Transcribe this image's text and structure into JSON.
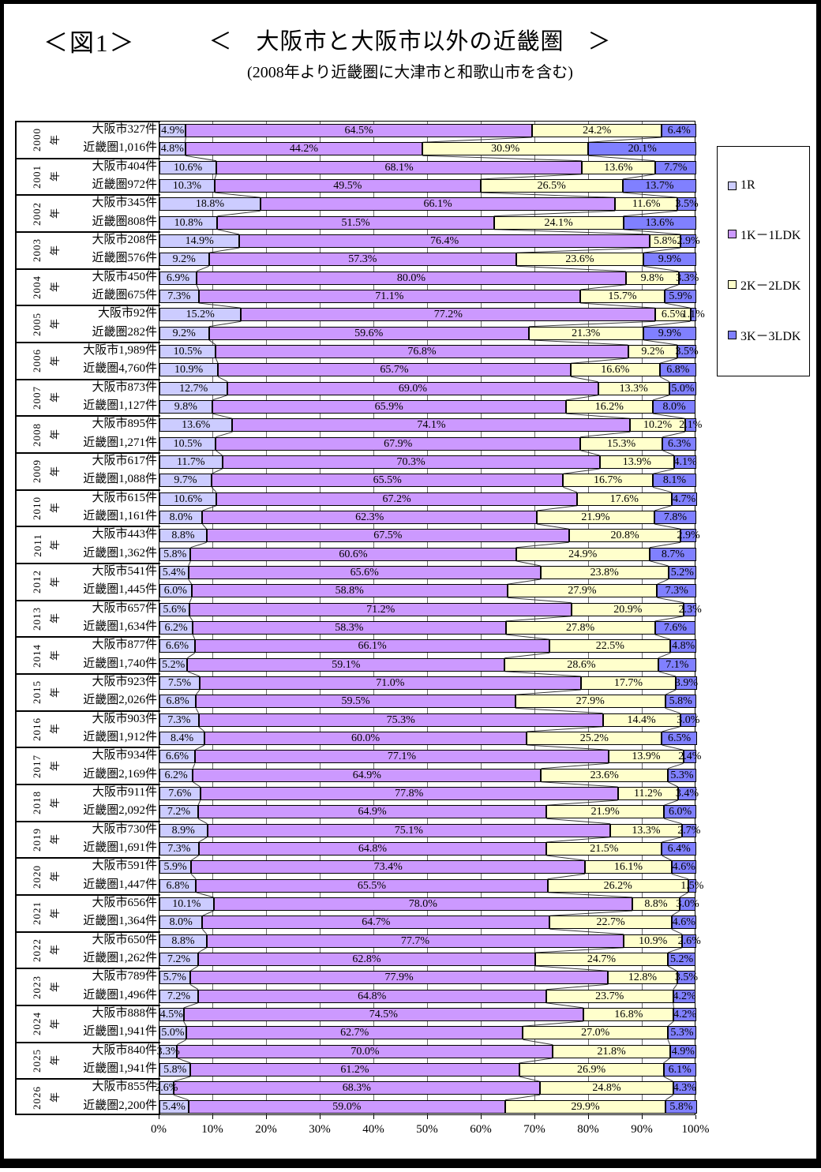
{
  "figure_label": "＜図1＞",
  "title": "＜　大阪市と大阪市以外の近畿圏　＞",
  "subtitle": "(2008年より近畿圏に大津市と和歌山市を含む)",
  "x_axis": {
    "ticks": [
      "0%",
      "10%",
      "20%",
      "30%",
      "40%",
      "50%",
      "60%",
      "70%",
      "80%",
      "90%",
      "100%"
    ]
  },
  "chart_data": {
    "type": "bar",
    "orientation": "horizontal",
    "stacked": "100-percent",
    "xlim": [
      0,
      100
    ],
    "grid": true,
    "legend_position": "right",
    "series": [
      "1R",
      "1K－1LDK",
      "2K－2LDK",
      "3K－3LDK"
    ],
    "colors": [
      "#CCCCFF",
      "#CC99FF",
      "#FFFFCC",
      "#8080FF"
    ],
    "groups": [
      {
        "year": "2000",
        "rows": [
          {
            "label": "大阪市327件",
            "values": [
              4.9,
              64.5,
              24.2,
              6.4
            ]
          },
          {
            "label": "近畿圏1,016件",
            "values": [
              4.8,
              44.2,
              30.9,
              20.1
            ]
          }
        ]
      },
      {
        "year": "2001",
        "rows": [
          {
            "label": "大阪市404件",
            "values": [
              10.6,
              68.1,
              13.6,
              7.7
            ]
          },
          {
            "label": "近畿圏972件",
            "values": [
              10.3,
              49.5,
              26.5,
              13.7
            ]
          }
        ]
      },
      {
        "year": "2002",
        "rows": [
          {
            "label": "大阪市345件",
            "values": [
              18.8,
              66.1,
              11.6,
              3.5
            ]
          },
          {
            "label": "近畿圏808件",
            "values": [
              10.8,
              51.5,
              24.1,
              13.6
            ]
          }
        ]
      },
      {
        "year": "2003",
        "rows": [
          {
            "label": "大阪市208件",
            "values": [
              14.9,
              76.4,
              5.8,
              2.9
            ]
          },
          {
            "label": "近畿圏576件",
            "values": [
              9.2,
              57.3,
              23.6,
              9.9
            ]
          }
        ]
      },
      {
        "year": "2004",
        "rows": [
          {
            "label": "大阪市450件",
            "values": [
              6.9,
              80.0,
              9.8,
              3.3
            ]
          },
          {
            "label": "近畿圏675件",
            "values": [
              7.3,
              71.1,
              15.7,
              5.9
            ]
          }
        ]
      },
      {
        "year": "2005",
        "rows": [
          {
            "label": "大阪市92件",
            "values": [
              15.2,
              77.2,
              6.5,
              1.1
            ]
          },
          {
            "label": "近畿圏282件",
            "values": [
              9.2,
              59.6,
              21.3,
              9.9
            ]
          }
        ]
      },
      {
        "year": "2006",
        "rows": [
          {
            "label": "大阪市1,989件",
            "values": [
              10.5,
              76.8,
              9.2,
              3.5
            ]
          },
          {
            "label": "近畿圏4,760件",
            "values": [
              10.9,
              65.7,
              16.6,
              6.8
            ]
          }
        ]
      },
      {
        "year": "2007",
        "rows": [
          {
            "label": "大阪市873件",
            "values": [
              12.7,
              69.0,
              13.3,
              5.0
            ]
          },
          {
            "label": "近畿圏1,127件",
            "values": [
              9.8,
              65.9,
              16.2,
              8.0
            ]
          }
        ]
      },
      {
        "year": "2008",
        "rows": [
          {
            "label": "大阪市895件",
            "values": [
              13.6,
              74.1,
              10.2,
              2.1
            ]
          },
          {
            "label": "近畿圏1,271件",
            "values": [
              10.5,
              67.9,
              15.3,
              6.3
            ]
          }
        ]
      },
      {
        "year": "2009",
        "rows": [
          {
            "label": "大阪市617件",
            "values": [
              11.7,
              70.3,
              13.9,
              4.1
            ]
          },
          {
            "label": "近畿圏1,088件",
            "values": [
              9.7,
              65.5,
              16.7,
              8.1
            ]
          }
        ]
      },
      {
        "year": "2010",
        "rows": [
          {
            "label": "大阪市615件",
            "values": [
              10.6,
              67.2,
              17.6,
              4.7
            ]
          },
          {
            "label": "近畿圏1,161件",
            "values": [
              8.0,
              62.3,
              21.9,
              7.8
            ]
          }
        ]
      },
      {
        "year": "2011",
        "rows": [
          {
            "label": "大阪市443件",
            "values": [
              8.8,
              67.5,
              20.8,
              2.9
            ]
          },
          {
            "label": "近畿圏1,362件",
            "values": [
              5.8,
              60.6,
              24.9,
              8.7
            ]
          }
        ]
      },
      {
        "year": "2012",
        "rows": [
          {
            "label": "大阪市541件",
            "values": [
              5.4,
              65.6,
              23.8,
              5.2
            ]
          },
          {
            "label": "近畿圏1,445件",
            "values": [
              6.0,
              58.8,
              27.9,
              7.3
            ]
          }
        ]
      },
      {
        "year": "2013",
        "rows": [
          {
            "label": "大阪市657件",
            "values": [
              5.6,
              71.2,
              20.9,
              2.3
            ]
          },
          {
            "label": "近畿圏1,634件",
            "values": [
              6.2,
              58.3,
              27.8,
              7.6
            ]
          }
        ]
      },
      {
        "year": "2014",
        "rows": [
          {
            "label": "大阪市877件",
            "values": [
              6.6,
              66.1,
              22.5,
              4.8
            ]
          },
          {
            "label": "近畿圏1,740件",
            "values": [
              5.2,
              59.1,
              28.6,
              7.1
            ]
          }
        ]
      },
      {
        "year": "2015",
        "rows": [
          {
            "label": "大阪市923件",
            "values": [
              7.5,
              71.0,
              17.7,
              3.9
            ]
          },
          {
            "label": "近畿圏2,026件",
            "values": [
              6.8,
              59.5,
              27.9,
              5.8
            ]
          }
        ]
      },
      {
        "year": "2016",
        "rows": [
          {
            "label": "大阪市903件",
            "values": [
              7.3,
              75.3,
              14.4,
              3.0
            ]
          },
          {
            "label": "近畿圏1,912件",
            "values": [
              8.4,
              60.0,
              25.2,
              6.5
            ]
          }
        ]
      },
      {
        "year": "2017",
        "rows": [
          {
            "label": "大阪市934件",
            "values": [
              6.6,
              77.1,
              13.9,
              2.4
            ]
          },
          {
            "label": "近畿圏2,169件",
            "values": [
              6.2,
              64.9,
              23.6,
              5.3
            ]
          }
        ]
      },
      {
        "year": "2018",
        "rows": [
          {
            "label": "大阪市911件",
            "values": [
              7.6,
              77.8,
              11.2,
              3.4
            ]
          },
          {
            "label": "近畿圏2,092件",
            "values": [
              7.2,
              64.9,
              21.9,
              6.0
            ]
          }
        ]
      },
      {
        "year": "2019",
        "rows": [
          {
            "label": "大阪市730件",
            "values": [
              8.9,
              75.1,
              13.3,
              2.7
            ]
          },
          {
            "label": "近畿圏1,691件",
            "values": [
              7.3,
              64.8,
              21.5,
              6.4
            ]
          }
        ]
      },
      {
        "year": "2020",
        "rows": [
          {
            "label": "大阪市591件",
            "values": [
              5.9,
              73.4,
              16.1,
              4.6
            ]
          },
          {
            "label": "近畿圏1,447件",
            "values": [
              6.8,
              65.5,
              26.2,
              1.5
            ]
          }
        ]
      },
      {
        "year": "2021",
        "rows": [
          {
            "label": "大阪市656件",
            "values": [
              10.1,
              78.0,
              8.8,
              3.0
            ]
          },
          {
            "label": "近畿圏1,364件",
            "values": [
              8.0,
              64.7,
              22.7,
              4.6
            ]
          }
        ]
      },
      {
        "year": "2022",
        "rows": [
          {
            "label": "大阪市650件",
            "values": [
              8.8,
              77.7,
              10.9,
              2.6
            ]
          },
          {
            "label": "近畿圏1,262件",
            "values": [
              7.2,
              62.8,
              24.7,
              5.2
            ]
          }
        ]
      },
      {
        "year": "2023",
        "rows": [
          {
            "label": "大阪市789件",
            "values": [
              5.7,
              77.9,
              12.8,
              3.5
            ]
          },
          {
            "label": "近畿圏1,496件",
            "values": [
              7.2,
              64.8,
              23.7,
              4.2
            ]
          }
        ]
      },
      {
        "year": "2024",
        "rows": [
          {
            "label": "大阪市888件",
            "values": [
              4.5,
              74.5,
              16.8,
              4.2
            ]
          },
          {
            "label": "近畿圏1,941件",
            "values": [
              5.0,
              62.7,
              27.0,
              5.3
            ]
          }
        ]
      },
      {
        "year": "2025",
        "rows": [
          {
            "label": "大阪市840件",
            "values": [
              3.3,
              70.0,
              21.8,
              4.9
            ]
          },
          {
            "label": "近畿圏1,941件",
            "values": [
              5.8,
              61.2,
              26.9,
              6.1
            ]
          }
        ]
      },
      {
        "year": "2026",
        "rows": [
          {
            "label": "大阪市855件",
            "values": [
              2.6,
              68.3,
              24.8,
              4.3
            ]
          },
          {
            "label": "近畿圏2,200件",
            "values": [
              5.4,
              59.0,
              29.9,
              5.8
            ]
          }
        ]
      }
    ]
  }
}
